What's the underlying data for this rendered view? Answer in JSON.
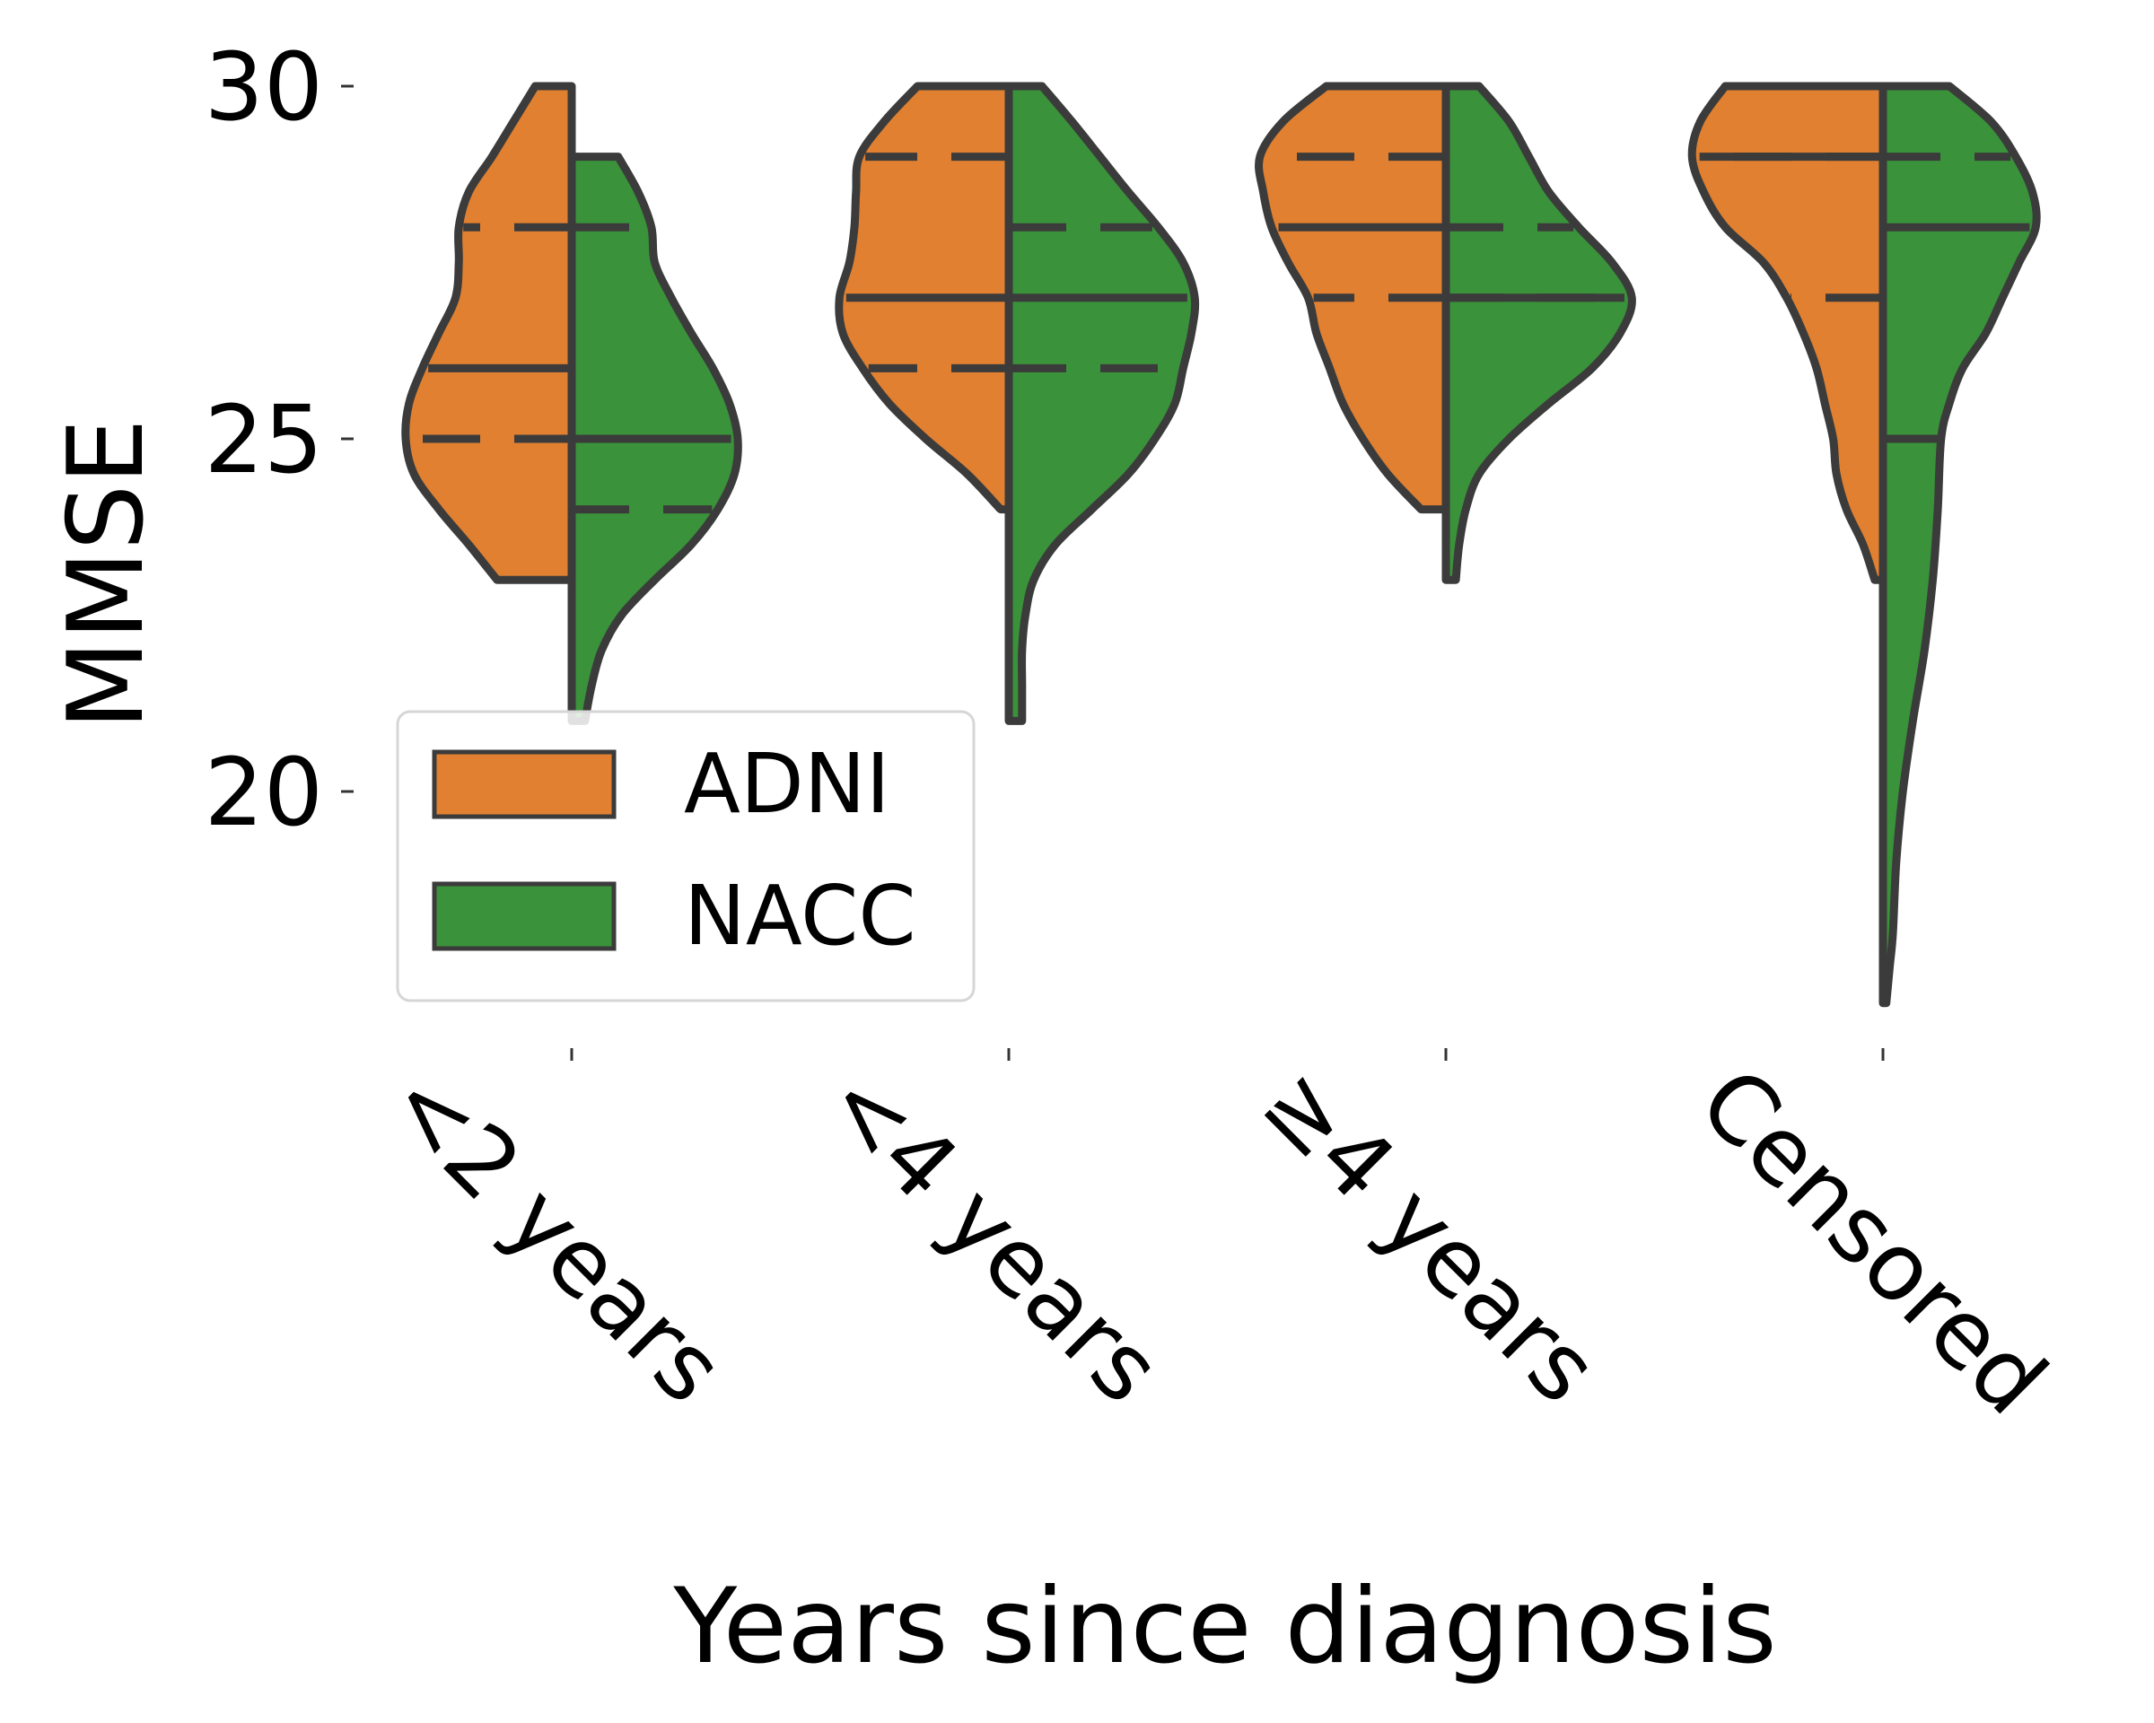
{
  "chart_data": {
    "type": "violin",
    "xlabel": "Years since diagnosis",
    "ylabel": "MMSE",
    "categories": [
      "<2 years",
      "<4 years",
      "≥4 years",
      "Censored"
    ],
    "yticks": [
      20,
      25,
      30
    ],
    "ylim": [
      16,
      30.5
    ],
    "split": true,
    "inner": "quartile",
    "legend": {
      "placement": "lower-left"
    },
    "series": [
      {
        "name": "ADNI",
        "color": "#e08030",
        "violins": [
          {
            "min": 23,
            "max": 30,
            "quartiles": [
              25,
              26,
              28
            ],
            "density": [
              [
                23,
                0.45
              ],
              [
                23.5,
                0.62
              ],
              [
                24,
                0.8
              ],
              [
                24.5,
                0.95
              ],
              [
                25,
                1.0
              ],
              [
                25.5,
                0.98
              ],
              [
                26,
                0.9
              ],
              [
                26.5,
                0.8
              ],
              [
                27,
                0.7
              ],
              [
                27.5,
                0.68
              ],
              [
                28,
                0.68
              ],
              [
                28.5,
                0.62
              ],
              [
                29,
                0.48
              ],
              [
                29.5,
                0.35
              ],
              [
                30,
                0.22
              ]
            ]
          },
          {
            "min": 24,
            "max": 30,
            "quartiles": [
              26,
              27,
              29
            ],
            "density": [
              [
                24,
                0.05
              ],
              [
                24.5,
                0.25
              ],
              [
                25,
                0.5
              ],
              [
                25.5,
                0.72
              ],
              [
                26,
                0.88
              ],
              [
                26.5,
                1.0
              ],
              [
                27,
                1.02
              ],
              [
                27.5,
                0.96
              ],
              [
                28,
                0.93
              ],
              [
                28.5,
                0.92
              ],
              [
                29,
                0.9
              ],
              [
                29.5,
                0.75
              ],
              [
                30,
                0.55
              ]
            ]
          },
          {
            "min": 24,
            "max": 30,
            "quartiles": [
              27,
              28,
              29
            ],
            "density": [
              [
                24,
                0.15
              ],
              [
                24.5,
                0.35
              ],
              [
                25,
                0.5
              ],
              [
                25.5,
                0.62
              ],
              [
                26,
                0.7
              ],
              [
                26.5,
                0.78
              ],
              [
                27,
                0.83
              ],
              [
                27.5,
                0.95
              ],
              [
                28,
                1.05
              ],
              [
                28.5,
                1.1
              ],
              [
                29,
                1.12
              ],
              [
                29.5,
                0.98
              ],
              [
                30,
                0.72
              ]
            ]
          },
          {
            "min": 23,
            "max": 30,
            "quartiles": [
              27,
              29,
              29
            ],
            "density": [
              [
                23,
                0.05
              ],
              [
                23.5,
                0.12
              ],
              [
                24,
                0.22
              ],
              [
                24.5,
                0.28
              ],
              [
                25,
                0.3
              ],
              [
                25.5,
                0.35
              ],
              [
                26,
                0.4
              ],
              [
                26.5,
                0.48
              ],
              [
                27,
                0.58
              ],
              [
                27.5,
                0.72
              ],
              [
                28,
                0.95
              ],
              [
                28.5,
                1.08
              ],
              [
                29,
                1.15
              ],
              [
                29.5,
                1.1
              ],
              [
                30,
                0.95
              ]
            ]
          }
        ]
      },
      {
        "name": "NACC",
        "color": "#3a923a",
        "violins": [
          {
            "min": 21,
            "max": 29,
            "quartiles": [
              24,
              25,
              28
            ],
            "density": [
              [
                21,
                0.08
              ],
              [
                21.5,
                0.12
              ],
              [
                22,
                0.18
              ],
              [
                22.5,
                0.3
              ],
              [
                23,
                0.5
              ],
              [
                23.5,
                0.72
              ],
              [
                24,
                0.88
              ],
              [
                24.5,
                0.98
              ],
              [
                25,
                1.0
              ],
              [
                25.5,
                0.95
              ],
              [
                26,
                0.85
              ],
              [
                26.5,
                0.72
              ],
              [
                27,
                0.6
              ],
              [
                27.5,
                0.5
              ],
              [
                28,
                0.48
              ],
              [
                28.5,
                0.4
              ],
              [
                29,
                0.28
              ]
            ]
          },
          {
            "min": 21,
            "max": 30,
            "quartiles": [
              26,
              27,
              28
            ],
            "density": [
              [
                21,
                0.08
              ],
              [
                21.5,
                0.08
              ],
              [
                22,
                0.08
              ],
              [
                22.5,
                0.1
              ],
              [
                23,
                0.15
              ],
              [
                23.5,
                0.28
              ],
              [
                24,
                0.5
              ],
              [
                24.5,
                0.72
              ],
              [
                25,
                0.88
              ],
              [
                25.5,
                1.0
              ],
              [
                26,
                1.05
              ],
              [
                26.5,
                1.1
              ],
              [
                27,
                1.12
              ],
              [
                27.5,
                1.05
              ],
              [
                28,
                0.9
              ],
              [
                28.5,
                0.72
              ],
              [
                29,
                0.55
              ],
              [
                29.5,
                0.38
              ],
              [
                30,
                0.2
              ]
            ]
          },
          {
            "min": 23,
            "max": 30,
            "quartiles": [
              27,
              27,
              28
            ],
            "density": [
              [
                23,
                0.06
              ],
              [
                23.5,
                0.08
              ],
              [
                24,
                0.12
              ],
              [
                24.5,
                0.2
              ],
              [
                25,
                0.38
              ],
              [
                25.5,
                0.62
              ],
              [
                26,
                0.88
              ],
              [
                26.5,
                1.05
              ],
              [
                27,
                1.12
              ],
              [
                27.5,
                1.0
              ],
              [
                28,
                0.8
              ],
              [
                28.5,
                0.62
              ],
              [
                29,
                0.5
              ],
              [
                29.5,
                0.38
              ],
              [
                30,
                0.2
              ]
            ]
          },
          {
            "min": 17,
            "max": 30,
            "quartiles": [
              25,
              28,
              29
            ],
            "density": [
              [
                17,
                0.02
              ],
              [
                17.5,
                0.04
              ],
              [
                18,
                0.06
              ],
              [
                19,
                0.08
              ],
              [
                20,
                0.12
              ],
              [
                21,
                0.18
              ],
              [
                22,
                0.25
              ],
              [
                23,
                0.3
              ],
              [
                24,
                0.33
              ],
              [
                25,
                0.35
              ],
              [
                25.5,
                0.4
              ],
              [
                26,
                0.48
              ],
              [
                26.5,
                0.62
              ],
              [
                27,
                0.72
              ],
              [
                27.5,
                0.82
              ],
              [
                28,
                0.92
              ],
              [
                28.5,
                0.9
              ],
              [
                29,
                0.8
              ],
              [
                29.5,
                0.65
              ],
              [
                30,
                0.4
              ]
            ]
          }
        ]
      }
    ]
  }
}
